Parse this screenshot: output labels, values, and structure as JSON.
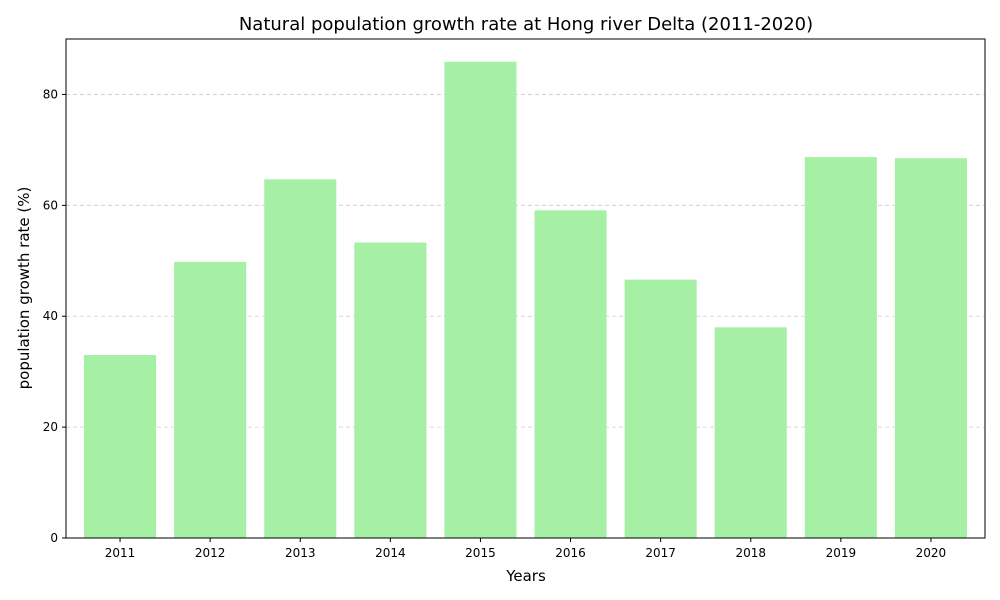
{
  "chart_data": {
    "type": "bar",
    "title": "Natural population growth rate at Hong river Delta (2011-2020)",
    "xlabel": "Years",
    "ylabel": "population growth rate (%)",
    "categories": [
      "2011",
      "2012",
      "2013",
      "2014",
      "2015",
      "2016",
      "2017",
      "2018",
      "2019",
      "2020"
    ],
    "values": [
      33.0,
      49.8,
      64.7,
      53.3,
      85.9,
      59.1,
      46.6,
      38.0,
      68.7,
      68.5
    ],
    "ylim": [
      0,
      90
    ],
    "yticks": [
      0,
      20,
      40,
      60,
      80
    ],
    "grid": "y-dashed",
    "bar_color": "#a6f0a6",
    "grid_color": "#cccccc"
  }
}
